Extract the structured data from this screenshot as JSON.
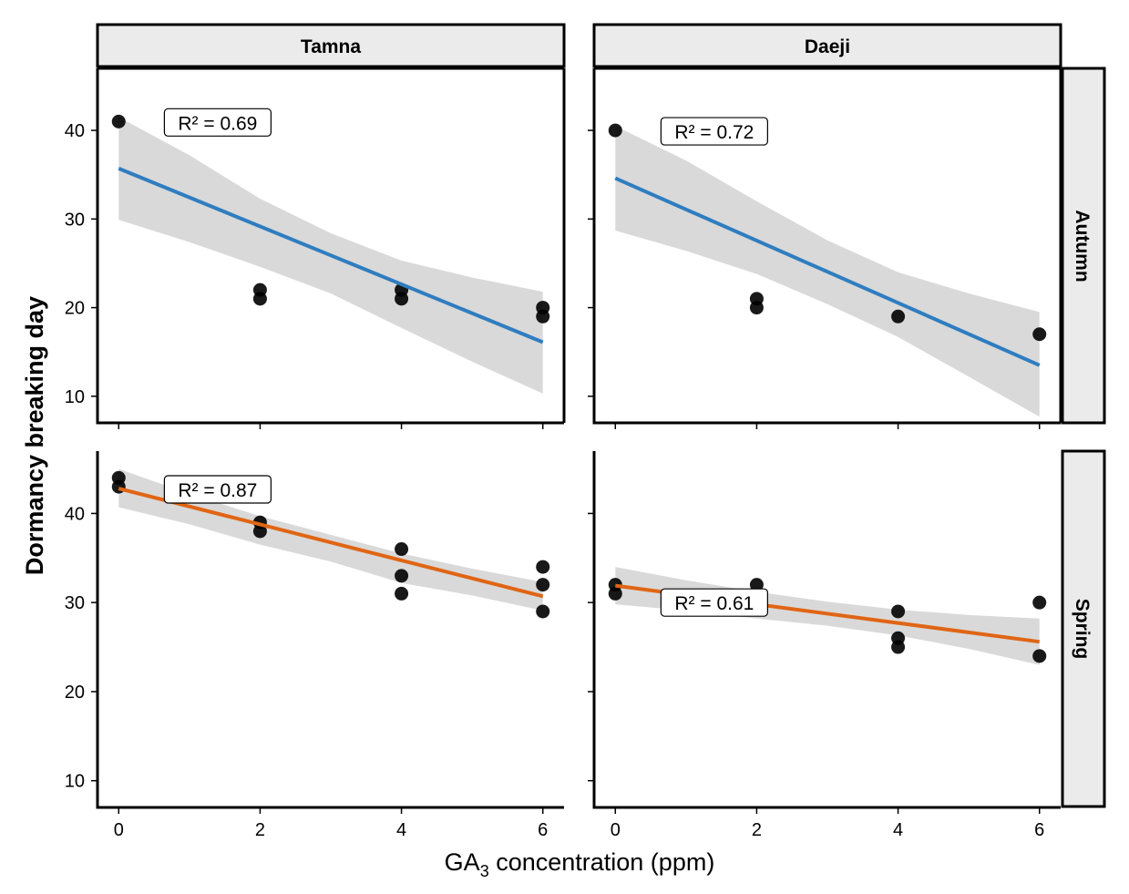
{
  "chart_data": {
    "type": "scatter",
    "facet_columns": [
      "Tamna",
      "Daeji"
    ],
    "facet_rows": [
      "Autumn",
      "Spring"
    ],
    "xlabel_main": "GA",
    "xlabel_sub": "3",
    "xlabel_rest": " concentration (ppm)",
    "ylabel": "Dormancy breaking day",
    "xlim": [
      -0.3,
      6.3
    ],
    "ylim": [
      7,
      47
    ],
    "x_ticks": [
      0,
      2,
      4,
      6
    ],
    "y_ticks": [
      10,
      20,
      30,
      40
    ],
    "x_tick_labels": [
      "0",
      "2",
      "4",
      "6"
    ],
    "y_tick_labels": [
      "10",
      "20",
      "30",
      "40"
    ],
    "grid": false,
    "colors": {
      "Autumn": "#2f7dc0",
      "Spring": "#e06514",
      "points": "#000000",
      "ci_band": "#d9d9d9",
      "strip_fill": "#ebebeb"
    },
    "panels": [
      {
        "row": "Autumn",
        "col": "Tamna",
        "points": [
          [
            0,
            41
          ],
          [
            2,
            22
          ],
          [
            2,
            21
          ],
          [
            4,
            22
          ],
          [
            4,
            21
          ],
          [
            6,
            20
          ],
          [
            6,
            19
          ]
        ],
        "fit": {
          "x0": 0,
          "y0": 35.7,
          "x1": 6,
          "y1": 16.1
        },
        "ci_upper": [
          [
            0,
            41.5
          ],
          [
            1,
            37.2
          ],
          [
            2,
            32.3
          ],
          [
            3,
            28.4
          ],
          [
            4,
            25.3
          ],
          [
            5,
            23.4
          ],
          [
            6,
            21.8
          ]
        ],
        "ci_lower": [
          [
            0,
            29.9
          ],
          [
            1,
            27.4
          ],
          [
            2,
            24.6
          ],
          [
            3,
            21.6
          ],
          [
            4,
            17.7
          ],
          [
            5,
            13.9
          ],
          [
            6,
            10.3
          ]
        ],
        "r2_label": "R² = 0.69",
        "r2_pos": [
          1.4,
          40.9
        ]
      },
      {
        "row": "Autumn",
        "col": "Daeji",
        "points": [
          [
            0,
            40
          ],
          [
            2,
            21
          ],
          [
            2,
            20
          ],
          [
            4,
            19
          ],
          [
            6,
            17
          ]
        ],
        "fit": {
          "x0": 0,
          "y0": 34.6,
          "x1": 6,
          "y1": 13.5
        },
        "ci_upper": [
          [
            0,
            40.5
          ],
          [
            1,
            36.6
          ],
          [
            2,
            32.0
          ],
          [
            3,
            27.6
          ],
          [
            4,
            24.0
          ],
          [
            5,
            21.6
          ],
          [
            6,
            19.5
          ]
        ],
        "ci_lower": [
          [
            0,
            28.7
          ],
          [
            1,
            26.4
          ],
          [
            2,
            23.8
          ],
          [
            3,
            20.4
          ],
          [
            4,
            16.7
          ],
          [
            5,
            12.2
          ],
          [
            6,
            7.7
          ]
        ],
        "r2_label": "R² = 0.72",
        "r2_pos": [
          1.4,
          39.9
        ]
      },
      {
        "row": "Spring",
        "col": "Tamna",
        "points": [
          [
            0,
            44
          ],
          [
            0,
            43
          ],
          [
            2,
            39
          ],
          [
            2,
            38
          ],
          [
            4,
            36
          ],
          [
            4,
            33
          ],
          [
            4,
            31
          ],
          [
            6,
            34
          ],
          [
            6,
            32
          ],
          [
            6,
            29
          ]
        ],
        "fit": {
          "x0": 0,
          "y0": 42.8,
          "x1": 6,
          "y1": 30.7
        },
        "ci_upper": [
          [
            0,
            45.0
          ],
          [
            1,
            42.2
          ],
          [
            2,
            39.7
          ],
          [
            3,
            37.6
          ],
          [
            4,
            35.5
          ],
          [
            5,
            33.8
          ],
          [
            6,
            32.3
          ]
        ],
        "ci_lower": [
          [
            0,
            40.7
          ],
          [
            1,
            38.8
          ],
          [
            2,
            36.5
          ],
          [
            3,
            34.6
          ],
          [
            4,
            32.2
          ],
          [
            5,
            30.8
          ],
          [
            6,
            29.1
          ]
        ],
        "r2_label": "R² = 0.87",
        "r2_pos": [
          1.4,
          42.7
        ]
      },
      {
        "row": "Spring",
        "col": "Daeji",
        "points": [
          [
            0,
            32
          ],
          [
            0,
            31
          ],
          [
            2,
            32
          ],
          [
            2,
            30
          ],
          [
            4,
            29
          ],
          [
            4,
            26
          ],
          [
            4,
            25
          ],
          [
            6,
            30
          ],
          [
            6,
            24
          ]
        ],
        "fit": {
          "x0": 0,
          "y0": 31.9,
          "x1": 6,
          "y1": 25.6
        },
        "ci_upper": [
          [
            0,
            34.0
          ],
          [
            1,
            32.5
          ],
          [
            2,
            31.2
          ],
          [
            3,
            30.1
          ],
          [
            4,
            29.2
          ],
          [
            5,
            28.6
          ],
          [
            6,
            28.2
          ]
        ],
        "ci_lower": [
          [
            0,
            29.8
          ],
          [
            1,
            29.1
          ],
          [
            2,
            28.2
          ],
          [
            3,
            27.4
          ],
          [
            4,
            26.3
          ],
          [
            5,
            24.8
          ],
          [
            6,
            23.0
          ]
        ],
        "r2_label": "R² = 0.61",
        "r2_pos": [
          1.4,
          30.0
        ]
      }
    ]
  }
}
